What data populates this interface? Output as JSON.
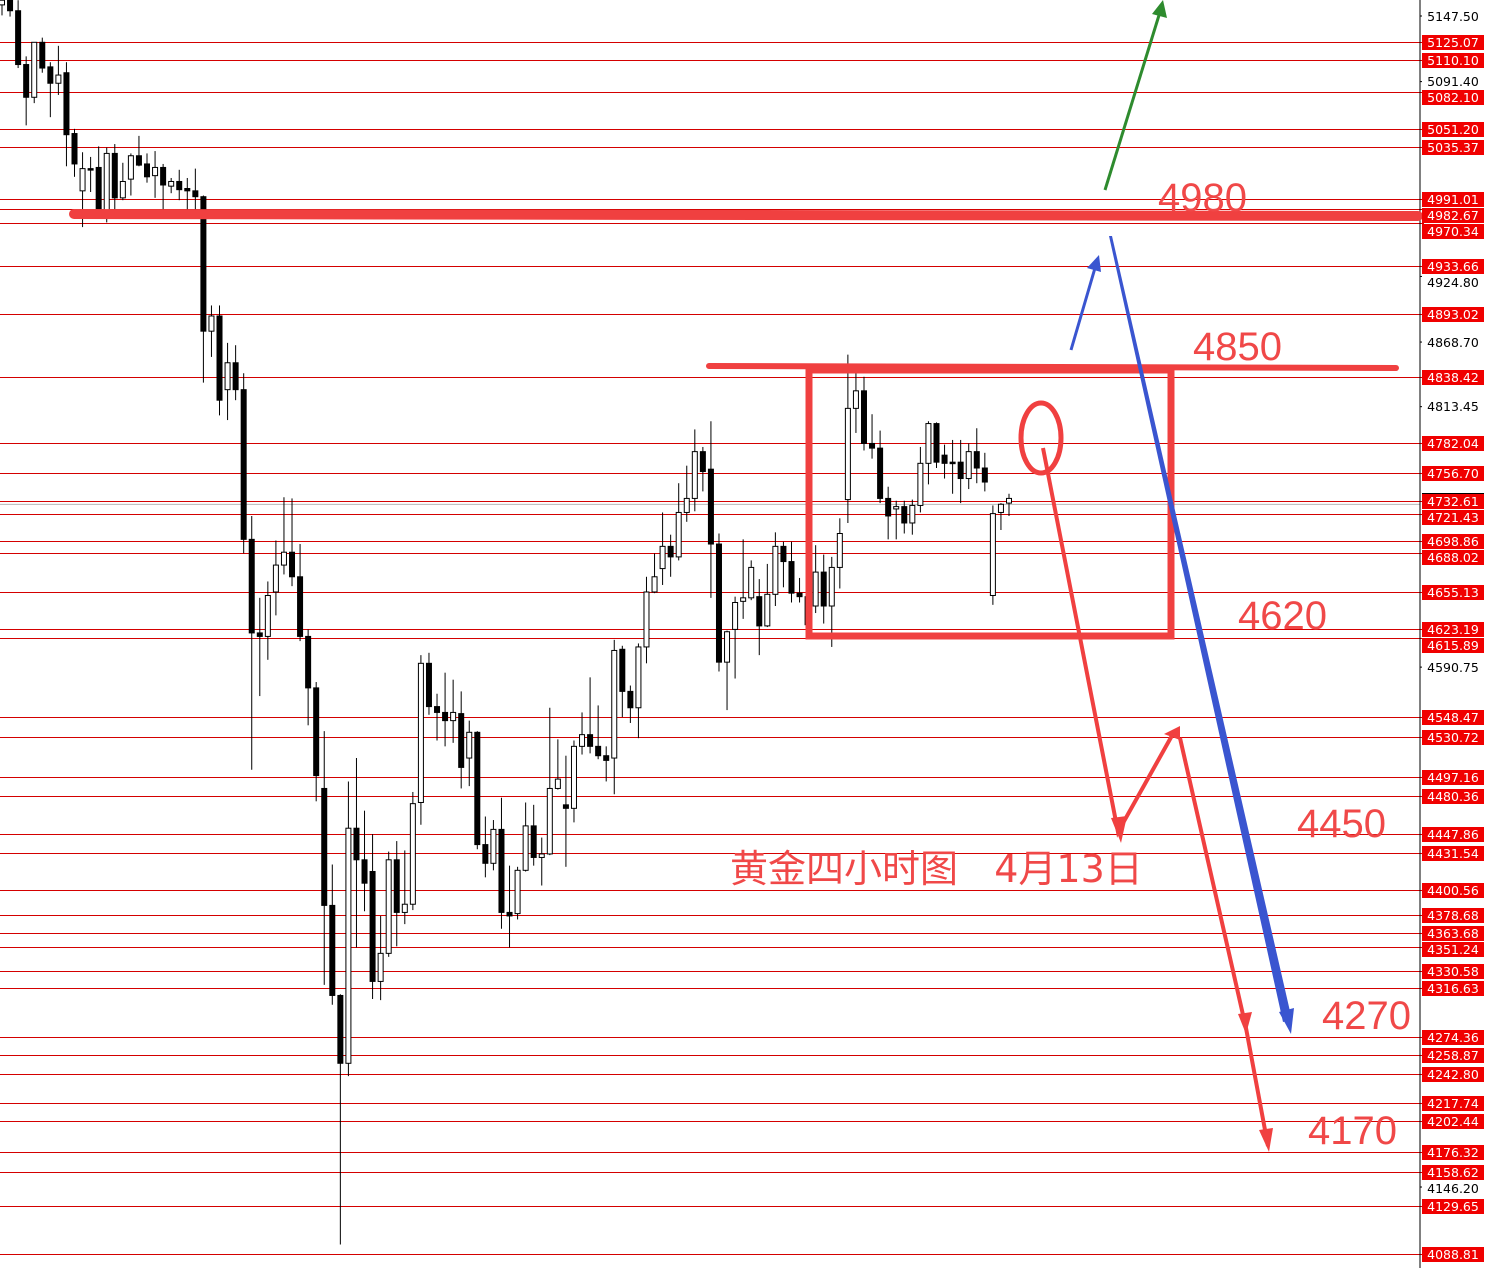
{
  "chart_data": {
    "type": "candlestick",
    "title": "黄金四小时图   4月13日",
    "grid": false,
    "y_axis_position": "right",
    "ylim": [
      4080,
      5161
    ],
    "candles_ohlc": [
      [
        5157,
        5161,
        5148,
        5161
      ],
      [
        5161,
        5161,
        5147,
        5152
      ],
      [
        5152,
        5161,
        5103,
        5106
      ],
      [
        5106,
        5113,
        5054,
        5078
      ],
      [
        5078,
        5125,
        5073,
        5125
      ],
      [
        5125,
        5129,
        5099,
        5103
      ],
      [
        5104,
        5108,
        5061,
        5090
      ],
      [
        5090,
        5122,
        5080,
        5097
      ],
      [
        5099,
        5108,
        5019,
        5046
      ],
      [
        5047,
        5051,
        5010,
        5021
      ],
      [
        4998,
        5031,
        4967,
        5017
      ],
      [
        5017,
        5027,
        4997,
        5016
      ],
      [
        5018,
        5036,
        4977,
        4980
      ],
      [
        4980,
        5035,
        4971,
        5030
      ],
      [
        5030,
        5038,
        4979,
        4992
      ],
      [
        4992,
        5022,
        4990,
        5006
      ],
      [
        5008,
        5030,
        4994,
        5028
      ],
      [
        5028,
        5045,
        5019,
        5020
      ],
      [
        5021,
        5030,
        5005,
        5010
      ],
      [
        5011,
        5032,
        4992,
        5018
      ],
      [
        5018,
        5021,
        4980,
        5003
      ],
      [
        5002,
        5009,
        4996,
        5006
      ],
      [
        5006,
        5016,
        4990,
        4999
      ],
      [
        5000,
        5009,
        4982,
        4998
      ],
      [
        4998,
        5017,
        4980,
        4993
      ],
      [
        4993,
        4994,
        4834,
        4878
      ],
      [
        4878,
        4900,
        4856,
        4891
      ],
      [
        4891,
        4900,
        4806,
        4819
      ],
      [
        4828,
        4868,
        4802,
        4851
      ],
      [
        4851,
        4866,
        4819,
        4828
      ],
      [
        4828,
        4842,
        4688,
        4700
      ],
      [
        4700,
        4720,
        4503,
        4620
      ],
      [
        4620,
        4650,
        4566,
        4617
      ],
      [
        4617,
        4664,
        4597,
        4652
      ],
      [
        4655,
        4699,
        4635,
        4678
      ],
      [
        4678,
        4736,
        4670,
        4689
      ],
      [
        4689,
        4735,
        4660,
        4668
      ],
      [
        4668,
        4696,
        4613,
        4617
      ],
      [
        4617,
        4623,
        4541,
        4573
      ],
      [
        4573,
        4578,
        4476,
        4498
      ],
      [
        4487,
        4536,
        4319,
        4387
      ],
      [
        4387,
        4422,
        4302,
        4310
      ],
      [
        4310,
        4311,
        4097,
        4252
      ],
      [
        4252,
        4493,
        4241,
        4453
      ],
      [
        4453,
        4513,
        4351,
        4426
      ],
      [
        4426,
        4468,
        4382,
        4406
      ],
      [
        4416,
        4448,
        4307,
        4322
      ],
      [
        4322,
        4378,
        4306,
        4346
      ],
      [
        4346,
        4433,
        4343,
        4426
      ],
      [
        4426,
        4442,
        4352,
        4381
      ],
      [
        4381,
        4434,
        4371,
        4388
      ],
      [
        4388,
        4484,
        4383,
        4474
      ],
      [
        4475,
        4601,
        4456,
        4594
      ],
      [
        4594,
        4603,
        4550,
        4557
      ],
      [
        4557,
        4568,
        4528,
        4552
      ],
      [
        4552,
        4586,
        4523,
        4545
      ],
      [
        4545,
        4580,
        4526,
        4552
      ],
      [
        4551,
        4570,
        4487,
        4505
      ],
      [
        4513,
        4545,
        4489,
        4535
      ],
      [
        4535,
        4536,
        4435,
        4439
      ],
      [
        4439,
        4463,
        4411,
        4423
      ],
      [
        4423,
        4460,
        4417,
        4452
      ],
      [
        4452,
        4479,
        4367,
        4381
      ],
      [
        4381,
        4421,
        4351,
        4378
      ],
      [
        4380,
        4420,
        4375,
        4417
      ],
      [
        4417,
        4475,
        4416,
        4455
      ],
      [
        4455,
        4473,
        4421,
        4428
      ],
      [
        4428,
        4445,
        4404,
        4431
      ],
      [
        4431,
        4556,
        4430,
        4487
      ],
      [
        4487,
        4529,
        4486,
        4495
      ],
      [
        4473,
        4515,
        4420,
        4470
      ],
      [
        4470,
        4528,
        4458,
        4523
      ],
      [
        4523,
        4552,
        4516,
        4533
      ],
      [
        4533,
        4582,
        4517,
        4523
      ],
      [
        4523,
        4558,
        4512,
        4515
      ],
      [
        4515,
        4523,
        4493,
        4511
      ],
      [
        4513,
        4614,
        4482,
        4605
      ],
      [
        4606,
        4609,
        4548,
        4570
      ],
      [
        4570,
        4575,
        4543,
        4556
      ],
      [
        4556,
        4611,
        4530,
        4608
      ],
      [
        4608,
        4668,
        4594,
        4655
      ],
      [
        4655,
        4688,
        4654,
        4668
      ],
      [
        4675,
        4723,
        4661,
        4694
      ],
      [
        4694,
        4704,
        4668,
        4685
      ],
      [
        4685,
        4748,
        4682,
        4723
      ],
      [
        4723,
        4763,
        4715,
        4735
      ],
      [
        4735,
        4794,
        4724,
        4775
      ],
      [
        4775,
        4779,
        4741,
        4758
      ],
      [
        4760,
        4801,
        4650,
        4696
      ],
      [
        4696,
        4705,
        4587,
        4595
      ],
      [
        4595,
        4622,
        4554,
        4621
      ],
      [
        4623,
        4651,
        4581,
        4646
      ],
      [
        4647,
        4700,
        4632,
        4650
      ],
      [
        4650,
        4682,
        4648,
        4676
      ],
      [
        4651,
        4666,
        4601,
        4626
      ],
      [
        4626,
        4679,
        4625,
        4653
      ],
      [
        4653,
        4706,
        4643,
        4694
      ],
      [
        4694,
        4698,
        4659,
        4681
      ],
      [
        4681,
        4698,
        4646,
        4654
      ],
      [
        4654,
        4667,
        4646,
        4651
      ],
      [
        4651,
        4669,
        4617,
        4627
      ],
      [
        4643,
        4695,
        4637,
        4672
      ],
      [
        4672,
        4687,
        4628,
        4643
      ],
      [
        4643,
        4685,
        4608,
        4676
      ],
      [
        4676,
        4718,
        4658,
        4705
      ],
      [
        4734,
        4858,
        4714,
        4812
      ],
      [
        4812,
        4842,
        4791,
        4827
      ],
      [
        4827,
        4839,
        4776,
        4782
      ],
      [
        4782,
        4807,
        4769,
        4778
      ],
      [
        4778,
        4793,
        4731,
        4735
      ],
      [
        4735,
        4745,
        4700,
        4720
      ],
      [
        4726,
        4733,
        4700,
        4728
      ],
      [
        4728,
        4733,
        4705,
        4714
      ],
      [
        4714,
        4734,
        4704,
        4729
      ],
      [
        4729,
        4779,
        4723,
        4765
      ],
      [
        4765,
        4801,
        4747,
        4799
      ],
      [
        4799,
        4800,
        4761,
        4766
      ],
      [
        4772,
        4781,
        4752,
        4765
      ],
      [
        4766,
        4785,
        4739,
        4765
      ],
      [
        4766,
        4785,
        4731,
        4752
      ],
      [
        4752,
        4782,
        4743,
        4775
      ],
      [
        4775,
        4795,
        4748,
        4761
      ],
      [
        4761,
        4774,
        4741,
        4749
      ],
      [
        4652,
        4729,
        4644,
        4722
      ],
      [
        4723,
        4731,
        4708,
        4730
      ],
      [
        4731,
        4739,
        4720,
        4735
      ]
    ],
    "price_levels": [
      "5125.07",
      "5110.10",
      "5082.10",
      "5051.20",
      "5035.37",
      "4991.01",
      "4982.67",
      "4970.34",
      "4933.66",
      "4893.02",
      "4838.42",
      "4782.04",
      "4756.70",
      "4732.61",
      "4721.43",
      "4698.86",
      "4688.02",
      "4655.13",
      "4623.19",
      "4615.89",
      "4548.47",
      "4530.72",
      "4497.16",
      "4480.36",
      "4447.86",
      "4431.54",
      "4400.56",
      "4378.68",
      "4363.68",
      "4351.24",
      "4330.58",
      "4316.63",
      "4274.36",
      "4258.87",
      "4242.80",
      "4217.74",
      "4202.44",
      "4176.32",
      "4158.62",
      "4129.65",
      "4088.81"
    ],
    "axis_ticks": [
      "5147.50",
      "5091.40",
      "4924.80",
      "4868.70",
      "4813.45",
      "4590.75",
      "4146.20"
    ],
    "current_price": 4735,
    "annotations": {
      "resistance_main": {
        "price": 4980,
        "label": "4980"
      },
      "resistance_box_top": {
        "price": 4850,
        "label": "4850"
      },
      "support_box_bottom": {
        "price": 4620,
        "label": "4620"
      },
      "target_1": {
        "label": "4450"
      },
      "target_2": {
        "label": "4270"
      },
      "target_3": {
        "label": "4170"
      }
    },
    "colors": {
      "level_line": "#d40000",
      "level_label": "#f00000",
      "drawing_red": "#f04040",
      "drawing_blue": "#3a55d0",
      "drawing_green": "#2e8b2e",
      "candle": "#000000"
    }
  }
}
